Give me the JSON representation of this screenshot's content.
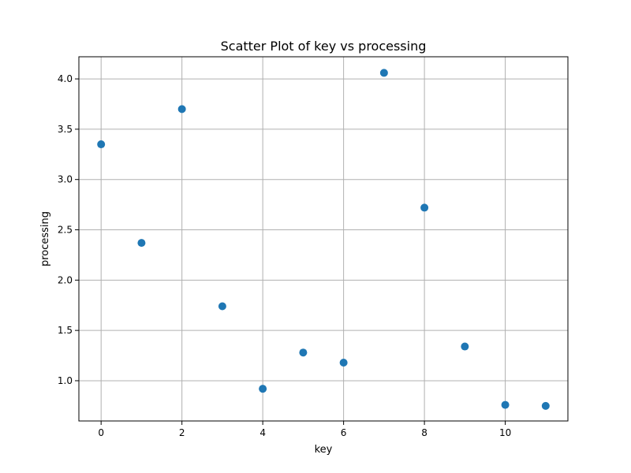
{
  "chart_data": {
    "type": "scatter",
    "title": "Scatter Plot of key vs processing",
    "xlabel": "key",
    "ylabel": "processing",
    "xlim": [
      -0.55,
      11.55
    ],
    "ylim": [
      0.6,
      4.22
    ],
    "grid": true,
    "marker_color": "#1f77b4",
    "x_ticks": [
      0,
      2,
      4,
      6,
      8,
      10
    ],
    "x_tick_labels": [
      "0",
      "2",
      "4",
      "6",
      "8",
      "10"
    ],
    "y_ticks": [
      1.0,
      1.5,
      2.0,
      2.5,
      3.0,
      3.5,
      4.0
    ],
    "y_tick_labels": [
      "1.0",
      "1.5",
      "2.0",
      "2.5",
      "3.0",
      "3.5",
      "4.0"
    ],
    "points": [
      {
        "x": 0,
        "y": 3.35
      },
      {
        "x": 1,
        "y": 2.37
      },
      {
        "x": 2,
        "y": 3.7
      },
      {
        "x": 3,
        "y": 1.74
      },
      {
        "x": 4,
        "y": 0.92
      },
      {
        "x": 5,
        "y": 1.28
      },
      {
        "x": 6,
        "y": 1.18
      },
      {
        "x": 7,
        "y": 4.06
      },
      {
        "x": 8,
        "y": 2.72
      },
      {
        "x": 9,
        "y": 1.34
      },
      {
        "x": 10,
        "y": 0.76
      },
      {
        "x": 11,
        "y": 0.75
      }
    ]
  }
}
